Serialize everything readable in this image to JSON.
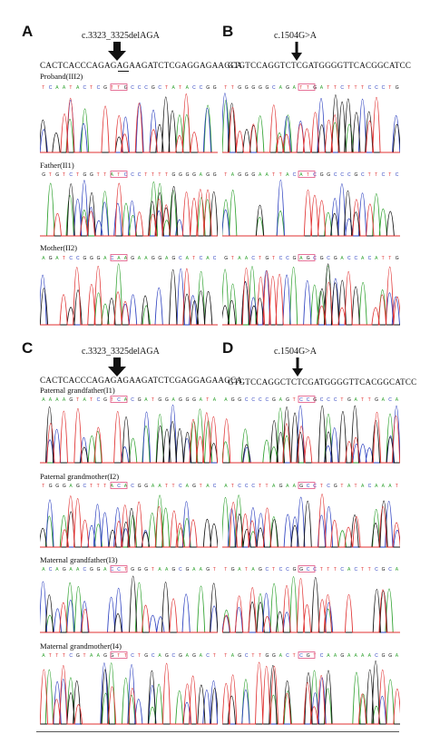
{
  "panels": {
    "A": {
      "letter": "A",
      "mutation": "c.3323_3325delAGA",
      "sequence": "CACTCACCCAGAGAGAAGATCTCGAGGAGAAGCA",
      "samples": [
        "Proband(III2)",
        "Father(II1)",
        "Mother(II2)"
      ]
    },
    "B": {
      "letter": "B",
      "mutation": "c.1504G>A",
      "sequence": "GTGTCCAGGTCTCGATGGGGTTCACGGCATCC"
    },
    "C": {
      "letter": "C",
      "mutation": "c.3323_3325delAGA",
      "sequence": "CACTCACCCAGAGAGAAGATCTCGAGGAGAAGCA",
      "samples": [
        "Paternal grandfather(I1)",
        "Paternal grandmother(I2)",
        "Maternal grandfather(I3)",
        "Maternal grandmother(I4)"
      ]
    },
    "D": {
      "letter": "D",
      "mutation": "c.1504G>A",
      "sequence": "GTGTCCAGGCTCTCGATGGGGTTCACGGCATCC"
    }
  },
  "colors": {
    "A": "#2ca02c",
    "C": "#2b3fbf",
    "G": "#111111",
    "T": "#e03030",
    "highlight_box": "#e05080"
  }
}
